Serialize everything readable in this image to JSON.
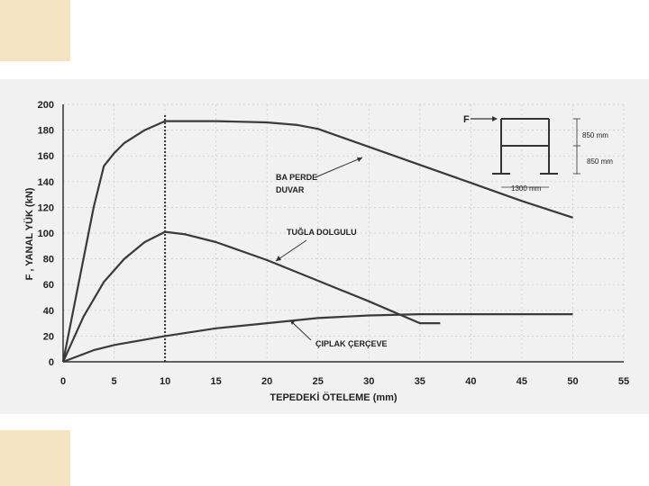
{
  "chart_data": {
    "type": "line",
    "xlabel": "TEPEDEKİ ÖTELEME (mm)",
    "ylabel": "F , YANAL YÜK (kN)",
    "xlim": [
      0,
      55
    ],
    "ylim": [
      0,
      200
    ],
    "xticks": [
      "0",
      "5",
      "10",
      "15",
      "20",
      "25",
      "30",
      "35",
      "40",
      "45",
      "50",
      "55"
    ],
    "yticks": [
      "0",
      "20",
      "40",
      "60",
      "80",
      "100",
      "120",
      "140",
      "160",
      "180",
      "200"
    ],
    "grid": true,
    "series": [
      {
        "name": "BA PERDE DUVAR",
        "x": [
          0,
          1,
          2,
          3,
          4,
          5,
          6,
          8,
          10,
          15,
          20,
          23,
          25,
          30,
          35,
          40,
          45,
          50
        ],
        "y": [
          0,
          40,
          80,
          120,
          152,
          162,
          170,
          180,
          187,
          187,
          186,
          184,
          181,
          167,
          153,
          139,
          125,
          112
        ]
      },
      {
        "name": "TUĞLA DOLGULU",
        "x": [
          0,
          2,
          4,
          6,
          8,
          10,
          12,
          15,
          20,
          25,
          30,
          35,
          37
        ],
        "y": [
          0,
          35,
          62,
          80,
          93,
          101,
          99,
          93,
          79,
          63,
          47,
          30,
          30
        ]
      },
      {
        "name": "ÇIPLAK ÇERÇEVE",
        "x": [
          0,
          3,
          5,
          10,
          15,
          20,
          25,
          30,
          35,
          40,
          45,
          50
        ],
        "y": [
          0,
          9,
          13,
          20,
          26,
          30,
          34,
          36,
          37,
          37,
          37,
          37
        ]
      }
    ],
    "reference_line": {
      "x": 10
    },
    "annotations": [
      "BA PERDE",
      "DUVAR",
      "TUĞLA DOLGULU",
      "ÇIPLAK ÇERÇEVE"
    ]
  },
  "inset": {
    "force_label": "F",
    "dim_top": "850 mm",
    "dim_bottom": "850 mm",
    "dim_width": "1300 mm"
  }
}
